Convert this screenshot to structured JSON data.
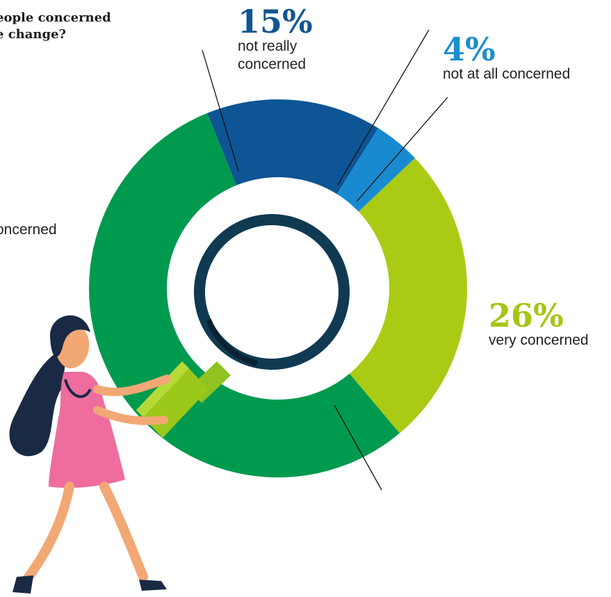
{
  "title": {
    "line1": "eople concerned",
    "line2": "e change?"
  },
  "labels": {
    "not_really": {
      "percent": "15%",
      "text": "not really concerned",
      "color": "#0f5592"
    },
    "not_at_all": {
      "percent": "4%",
      "text": "not at all concerned",
      "color": "#1b8ed0"
    },
    "very": {
      "percent": "26%",
      "text": "very concerned",
      "color": "#a6c515"
    },
    "left_partial": {
      "text": "oncerned"
    }
  },
  "chart_data": {
    "type": "pie",
    "title": "",
    "slices": [
      {
        "label": "not really concerned",
        "value": 15,
        "color": "#0d5595"
      },
      {
        "label": "not at all concerned",
        "value": 4,
        "color": "#1a8ad0"
      },
      {
        "label": "very concerned",
        "value": 26,
        "color": "#aacb14"
      },
      {
        "label": "oncerned",
        "value": 55,
        "color": "#009a4e"
      }
    ]
  },
  "icons": {
    "magnifier": "magnifying-glass-icon",
    "person": "woman-figure-icon"
  }
}
